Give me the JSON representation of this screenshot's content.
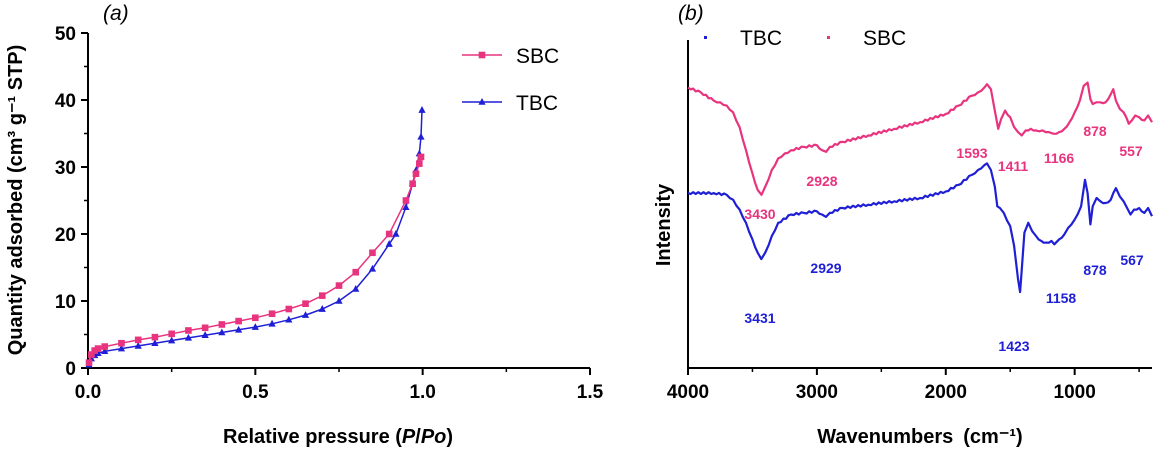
{
  "chart_data": [
    {
      "type": "line",
      "panel_label": "(a)",
      "xlabel_parts": [
        "Relative pressure (",
        "P",
        "/",
        "Po",
        ")"
      ],
      "ylabel": "Quantity adsorbed (cm³ g⁻¹ STP)",
      "xlim": [
        0,
        1.5
      ],
      "ylim": [
        0,
        50
      ],
      "xticks": [
        0.0,
        0.5,
        1.0,
        1.5
      ],
      "xtick_labels": [
        "0.0",
        "0.5",
        "1.0",
        "1.5"
      ],
      "yticks": [
        0,
        10,
        20,
        30,
        40,
        50
      ],
      "ytick_labels": [
        "0",
        "10",
        "20",
        "30",
        "40",
        "50"
      ],
      "legend_position": "top-right",
      "series": [
        {
          "name": "SBC",
          "color": "#e8337e",
          "marker": "square",
          "x": [
            0.003,
            0.01,
            0.02,
            0.03,
            0.05,
            0.1,
            0.15,
            0.2,
            0.25,
            0.3,
            0.35,
            0.4,
            0.45,
            0.5,
            0.55,
            0.6,
            0.65,
            0.7,
            0.75,
            0.8,
            0.85,
            0.9,
            0.95,
            0.97,
            0.98,
            0.99,
            0.995
          ],
          "y": [
            0.8,
            2.0,
            2.6,
            2.9,
            3.2,
            3.7,
            4.2,
            4.6,
            5.1,
            5.6,
            6.0,
            6.5,
            7.0,
            7.5,
            8.1,
            8.8,
            9.6,
            10.8,
            12.3,
            14.3,
            17.2,
            20.0,
            25.0,
            27.5,
            29.0,
            30.5,
            31.5
          ]
        },
        {
          "name": "TBC",
          "color": "#1f1fd6",
          "marker": "triangle",
          "x": [
            0.003,
            0.01,
            0.02,
            0.03,
            0.05,
            0.1,
            0.15,
            0.2,
            0.25,
            0.3,
            0.35,
            0.4,
            0.45,
            0.5,
            0.55,
            0.6,
            0.65,
            0.7,
            0.75,
            0.8,
            0.85,
            0.9,
            0.92,
            0.95,
            0.97,
            0.98,
            0.99,
            0.995,
            0.998
          ],
          "y": [
            0.5,
            1.4,
            1.9,
            2.2,
            2.5,
            2.9,
            3.3,
            3.7,
            4.1,
            4.5,
            4.9,
            5.3,
            5.7,
            6.1,
            6.6,
            7.2,
            7.9,
            8.8,
            10.0,
            11.8,
            14.8,
            18.5,
            20.0,
            24.0,
            27.5,
            29.5,
            32.0,
            34.5,
            38.5
          ]
        }
      ]
    },
    {
      "type": "line",
      "panel_label": "(b)",
      "xlabel": "Wavenumbers",
      "xlabel_unit": "(cm⁻¹)",
      "ylabel": "Intensity",
      "xlim": [
        4000,
        400
      ],
      "x_reversed": true,
      "xticks": [
        4000,
        3000,
        2000,
        1000
      ],
      "xtick_labels": [
        "4000",
        "3000",
        "2000",
        "1000"
      ],
      "y_ticks_shown": false,
      "y_range": [
        0,
        100
      ],
      "legend_position": "top-left",
      "series": [
        {
          "name": "TBC",
          "color": "#1f1fd6",
          "x": [
            4000,
            3800,
            3700,
            3650,
            3600,
            3550,
            3500,
            3460,
            3431,
            3400,
            3350,
            3300,
            3200,
            3100,
            3000,
            2960,
            2929,
            2900,
            2800,
            2600,
            2400,
            2200,
            2000,
            1900,
            1800,
            1750,
            1700,
            1680,
            1650,
            1620,
            1600,
            1580,
            1550,
            1500,
            1470,
            1440,
            1423,
            1410,
            1390,
            1360,
            1330,
            1300,
            1260,
            1220,
            1180,
            1158,
            1120,
            1080,
            1050,
            1000,
            950,
            920,
            900,
            878,
            860,
            830,
            800,
            760,
            720,
            700,
            680,
            650,
            620,
            600,
            580,
            567,
            540,
            500,
            460,
            430,
            400
          ],
          "y": [
            53,
            53,
            52.5,
            51,
            48,
            44,
            39,
            35,
            33,
            35,
            40,
            44,
            46.5,
            47,
            47.5,
            46.5,
            45.8,
            47,
            48.5,
            49.5,
            50.5,
            51.5,
            53.5,
            55.5,
            58.5,
            60,
            61.5,
            62,
            60,
            55,
            49,
            48.5,
            47,
            43,
            37,
            27,
            23,
            30,
            41,
            44,
            41.5,
            40,
            38.5,
            38,
            38.5,
            37.5,
            39,
            40.5,
            42.5,
            45,
            49,
            57,
            53,
            43.5,
            49,
            51.5,
            50.5,
            50,
            51,
            53,
            54.5,
            52,
            50.5,
            49,
            47.5,
            46.5,
            48,
            48.5,
            47,
            48.5,
            46
          ]
        },
        {
          "name": "SBC",
          "color": "#e8337e",
          "x": [
            4000,
            3900,
            3800,
            3750,
            3700,
            3650,
            3600,
            3550,
            3500,
            3460,
            3430,
            3400,
            3350,
            3300,
            3250,
            3200,
            3100,
            3000,
            2960,
            2928,
            2900,
            2800,
            2600,
            2400,
            2200,
            2000,
            1900,
            1800,
            1750,
            1700,
            1680,
            1650,
            1620,
            1600,
            1593,
            1570,
            1540,
            1500,
            1470,
            1440,
            1411,
            1380,
            1340,
            1300,
            1250,
            1200,
            1166,
            1120,
            1080,
            1040,
            1000,
            960,
            930,
            900,
            878,
            860,
            830,
            800,
            760,
            720,
            700,
            680,
            650,
            620,
            600,
            580,
            557,
            530,
            500,
            460,
            430,
            400
          ],
          "y": [
            85,
            83.5,
            81,
            80.5,
            79.5,
            77.5,
            73,
            66,
            59,
            54,
            52.5,
            55,
            60,
            63.5,
            65,
            66,
            67,
            67.5,
            66,
            65.5,
            67,
            68.5,
            70.5,
            72.5,
            74.5,
            77,
            79.5,
            82.5,
            83.5,
            85,
            86,
            84.5,
            78,
            74,
            72.5,
            75.5,
            78,
            76,
            73,
            71.5,
            70.5,
            72,
            72.5,
            72,
            72,
            71.5,
            71,
            71.5,
            72.5,
            74.5,
            77.5,
            81,
            85.5,
            86.5,
            81.5,
            80,
            80.5,
            80.5,
            80.5,
            83,
            84.5,
            81,
            78.5,
            77.5,
            76,
            74,
            75,
            76.5,
            76,
            75,
            76.5,
            74.5
          ]
        }
      ],
      "peak_labels": [
        {
          "series": "SBC",
          "text": "3430"
        },
        {
          "series": "SBC",
          "text": "2928"
        },
        {
          "series": "SBC",
          "text": "1593"
        },
        {
          "series": "SBC",
          "text": "1411"
        },
        {
          "series": "SBC",
          "text": "1166"
        },
        {
          "series": "SBC",
          "text": "878"
        },
        {
          "series": "SBC",
          "text": "557"
        },
        {
          "series": "TBC",
          "text": "3431"
        },
        {
          "series": "TBC",
          "text": "2929"
        },
        {
          "series": "TBC",
          "text": "1423"
        },
        {
          "series": "TBC",
          "text": "1158"
        },
        {
          "series": "TBC",
          "text": "878"
        },
        {
          "series": "TBC",
          "text": "567"
        }
      ]
    }
  ]
}
